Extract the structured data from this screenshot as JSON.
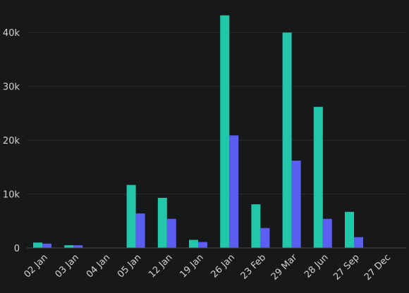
{
  "chart_data": {
    "type": "bar",
    "title": "",
    "xlabel": "",
    "ylabel": "",
    "ylim": [
      0,
      45000
    ],
    "yticks": [
      0,
      10000,
      20000,
      30000,
      40000
    ],
    "ytick_labels": [
      "0",
      "10k",
      "20k",
      "30k",
      "40k"
    ],
    "grid": true,
    "legend": "none",
    "categories": [
      "02 Jan",
      "03 Jan",
      "04 Jan",
      "05 Jan",
      "12 Jan",
      "19 Jan",
      "26 Jan",
      "23 Feb",
      "29 Mar",
      "28 Jun",
      "27 Sep",
      "27 Dec"
    ],
    "series": [
      {
        "color": "#22c7a9",
        "values": [
          1000,
          500,
          0,
          11700,
          9300,
          1500,
          43200,
          8100,
          40000,
          26200,
          6700,
          0
        ]
      },
      {
        "color": "#5b5ef0",
        "values": [
          800,
          500,
          0,
          6400,
          5400,
          1100,
          20900,
          3700,
          16200,
          5400,
          2000,
          0
        ]
      }
    ]
  }
}
